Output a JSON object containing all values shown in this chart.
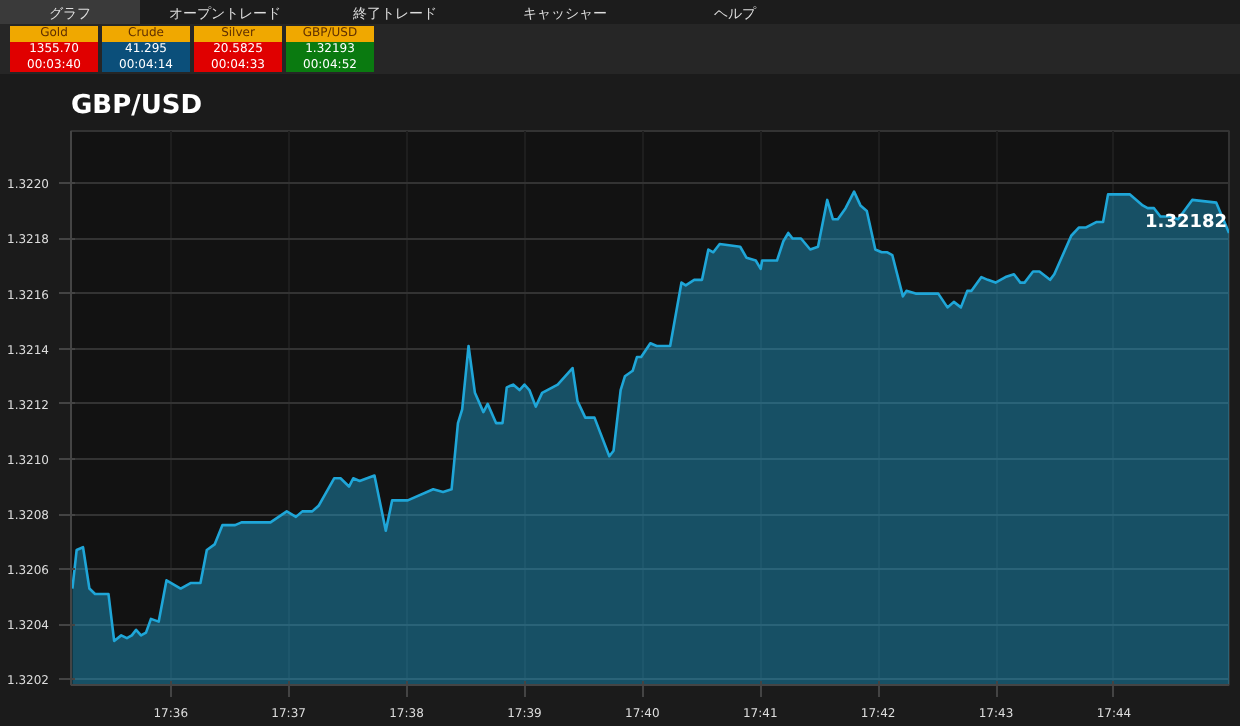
{
  "chart_data": {
    "type": "area",
    "title": "GBP/USD",
    "annotations": [
      "グラフ",
      "オープントレード",
      "終了トレード",
      "キャッシャー",
      "ヘルプ",
      "Gold",
      "1355.70",
      "00:03:40",
      "Crude",
      "41.295",
      "00:04:14",
      "Silver",
      "20.5825",
      "00:04:33",
      "GBP/USD",
      "1.32193",
      "00:04:52",
      {
        "text": "1.32182",
        "x": 17.7496,
        "y": 1.32182
      }
    ],
    "x": [
      17.5861,
      17.5867,
      17.5876,
      17.5885,
      17.5893,
      17.5912,
      17.592,
      17.593,
      17.5938,
      17.5945,
      17.5951,
      17.5958,
      17.5965,
      17.5972,
      17.5983,
      17.5994,
      17.6014,
      17.6028,
      17.6042,
      17.6051,
      17.6062,
      17.6073,
      17.6091,
      17.61,
      17.6141,
      17.6164,
      17.6177,
      17.6186,
      17.62,
      17.6209,
      17.6231,
      17.624,
      17.6252,
      17.6258,
      17.6267,
      17.6288,
      17.6304,
      17.6313,
      17.6335,
      17.6371,
      17.6385,
      17.6397,
      17.6406,
      17.6412,
      17.6421,
      17.643,
      17.6442,
      17.6448,
      17.646,
      17.6469,
      17.6475,
      17.6484,
      17.6493,
      17.65,
      17.6507,
      17.6516,
      17.6525,
      17.6547,
      17.6568,
      17.6575,
      17.6586,
      17.6599,
      17.662,
      17.6626,
      17.6636,
      17.6642,
      17.6653,
      17.6659,
      17.6665,
      17.6678,
      17.6687,
      17.6706,
      17.6722,
      17.6728,
      17.674,
      17.6751,
      17.676,
      17.6767,
      17.6776,
      17.6805,
      17.6814,
      17.6827,
      17.6834,
      17.6836,
      17.6857,
      17.6866,
      17.6873,
      17.6879,
      17.6891,
      17.6904,
      17.6915,
      17.6928,
      17.6936,
      17.6943,
      17.6954,
      17.6966,
      17.6975,
      17.6984,
      17.6996,
      17.7005,
      17.7013,
      17.702,
      17.7026,
      17.7035,
      17.704,
      17.7053,
      17.7085,
      17.7098,
      17.7107,
      17.7117,
      17.7126,
      17.7132,
      17.7146,
      17.7155,
      17.7166,
      17.718,
      17.7192,
      17.7201,
      17.7207,
      17.7219,
      17.7228,
      17.7243,
      17.7249,
      17.7273,
      17.7284,
      17.7294,
      17.7309,
      17.7318,
      17.7325,
      17.7356,
      17.7374,
      17.7381,
      17.739,
      17.7399,
      17.7413,
      17.7424,
      17.7444,
      17.7478,
      17.7496
    ],
    "series": [
      {
        "color": "#1fa6d8",
        "values": [
          1.32053,
          1.32067,
          1.32068,
          1.32053,
          1.32051,
          1.32051,
          1.32034,
          1.32036,
          1.32035,
          1.32036,
          1.32038,
          1.32036,
          1.32037,
          1.32042,
          1.32041,
          1.32056,
          1.32053,
          1.32055,
          1.32055,
          1.32067,
          1.32069,
          1.32076,
          1.32076,
          1.32077,
          1.32077,
          1.32081,
          1.32079,
          1.32081,
          1.32081,
          1.32083,
          1.32093,
          1.32093,
          1.3209,
          1.32093,
          1.32092,
          1.32094,
          1.32074,
          1.32085,
          1.32085,
          1.32089,
          1.32088,
          1.32089,
          1.32113,
          1.32118,
          1.32141,
          1.32124,
          1.32117,
          1.3212,
          1.32113,
          1.32113,
          1.32126,
          1.32127,
          1.32125,
          1.32127,
          1.32125,
          1.32119,
          1.32124,
          1.32127,
          1.32133,
          1.32121,
          1.32115,
          1.32115,
          1.32101,
          1.32103,
          1.32125,
          1.3213,
          1.32132,
          1.32137,
          1.32137,
          1.32142,
          1.32141,
          1.32141,
          1.32164,
          1.32163,
          1.32165,
          1.32165,
          1.32176,
          1.32175,
          1.32178,
          1.32177,
          1.32173,
          1.32172,
          1.32169,
          1.32172,
          1.32172,
          1.32179,
          1.32182,
          1.3218,
          1.3218,
          1.32176,
          1.32177,
          1.32194,
          1.32187,
          1.32187,
          1.32191,
          1.32197,
          1.32192,
          1.3219,
          1.32176,
          1.32175,
          1.32175,
          1.32174,
          1.32168,
          1.32159,
          1.32161,
          1.3216,
          1.3216,
          1.32155,
          1.32157,
          1.32155,
          1.32161,
          1.32161,
          1.32166,
          1.32165,
          1.32164,
          1.32166,
          1.32167,
          1.32164,
          1.32164,
          1.32168,
          1.32168,
          1.32165,
          1.32167,
          1.32181,
          1.32184,
          1.32184,
          1.32186,
          1.32186,
          1.32196,
          1.32196,
          1.32192,
          1.32191,
          1.32191,
          1.32188,
          1.32188,
          1.32187,
          1.32194,
          1.32193,
          1.32182
        ]
      }
    ],
    "xlim": [
      17.5859,
      17.7496
    ],
    "ylim": [
      1.32018,
      1.32219
    ],
    "xticks": [
      {
        "value": 17.6,
        "label": "17:36"
      },
      {
        "value": 17.616667,
        "label": "17:37"
      },
      {
        "value": 17.633333,
        "label": "17:38"
      },
      {
        "value": 17.65,
        "label": "17:39"
      },
      {
        "value": 17.666667,
        "label": "17:40"
      },
      {
        "value": 17.683333,
        "label": "17:41"
      },
      {
        "value": 17.7,
        "label": "17:42"
      },
      {
        "value": 17.716667,
        "label": "17:43"
      },
      {
        "value": 17.733333,
        "label": "17:44"
      }
    ],
    "yticks": [
      1.3202,
      1.3204,
      1.3206,
      1.3208,
      {
        "value": 1.321,
        "label": "1.3210"
      },
      1.3212,
      1.3214,
      1.3216,
      1.3218,
      {
        "value": 1.322,
        "label": "1.3220"
      }
    ],
    "grid": true
  }
}
